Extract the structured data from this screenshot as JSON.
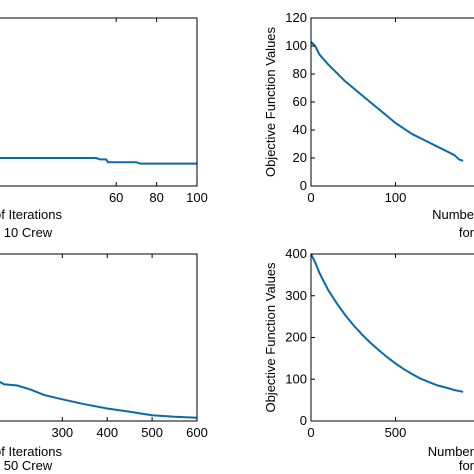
{
  "chart_data": [
    {
      "type": "line",
      "panel": "top-left",
      "xlim": [
        0,
        100
      ],
      "ylim": [
        0,
        120
      ],
      "xticks": [
        60,
        80,
        100
      ],
      "yticks": [],
      "xlabel_lines": [
        "of Iterations",
        "10 Crew"
      ],
      "ylabel": "",
      "grid": false,
      "series": [
        {
          "x": [
            0,
            50,
            52,
            55,
            56,
            70,
            72,
            100
          ],
          "y": [
            20,
            20,
            19,
            19,
            17,
            17,
            16,
            16
          ],
          "color": "#0a6aa8"
        }
      ]
    },
    {
      "type": "line",
      "panel": "top-right",
      "xlim": [
        0,
        200
      ],
      "ylim": [
        0,
        120
      ],
      "xticks": [
        0,
        100
      ],
      "yticks": [
        0,
        20,
        40,
        60,
        80,
        100,
        120
      ],
      "xlabel_lines": [
        "Numbe",
        "for"
      ],
      "ylabel": "Objective Function Values",
      "grid": false,
      "series": [
        {
          "x": [
            0,
            5,
            10,
            20,
            30,
            40,
            50,
            60,
            70,
            80,
            90,
            100,
            110,
            120,
            130,
            140,
            150,
            160,
            170,
            175,
            180
          ],
          "y": [
            103,
            100,
            94,
            87,
            81,
            75,
            70,
            65,
            60,
            55,
            50,
            45,
            41,
            37,
            34,
            31,
            28,
            25,
            22,
            19,
            18
          ],
          "color": "#0a6aa8"
        }
      ]
    },
    {
      "type": "line",
      "panel": "bottom-left",
      "xlim": [
        150,
        600
      ],
      "ylim": [
        0,
        400
      ],
      "xticks": [
        300,
        400,
        500,
        600
      ],
      "yticks": [],
      "xlabel_lines": [
        "of Iterations",
        "50 Crew"
      ],
      "ylabel": "",
      "grid": false,
      "series": [
        {
          "x": [
            150,
            170,
            200,
            230,
            260,
            300,
            350,
            400,
            450,
            500,
            550,
            600
          ],
          "y": [
            100,
            88,
            85,
            75,
            62,
            52,
            40,
            30,
            22,
            14,
            10,
            8
          ],
          "color": "#0a6aa8"
        }
      ]
    },
    {
      "type": "line",
      "panel": "bottom-right",
      "xlim": [
        0,
        1000
      ],
      "ylim": [
        0,
        400
      ],
      "xticks": [
        0,
        500
      ],
      "yticks": [
        0,
        100,
        200,
        300,
        400
      ],
      "xlabel_lines": [
        "Number",
        "for"
      ],
      "ylabel": "Objective Function Values",
      "grid": false,
      "series": [
        {
          "x": [
            0,
            25,
            50,
            100,
            150,
            200,
            250,
            300,
            350,
            400,
            450,
            500,
            550,
            600,
            650,
            700,
            750,
            800,
            850,
            900
          ],
          "y": [
            400,
            380,
            355,
            315,
            283,
            255,
            230,
            208,
            188,
            170,
            153,
            138,
            124,
            112,
            101,
            93,
            85,
            80,
            74,
            70
          ],
          "color": "#0a6aa8"
        }
      ]
    }
  ]
}
